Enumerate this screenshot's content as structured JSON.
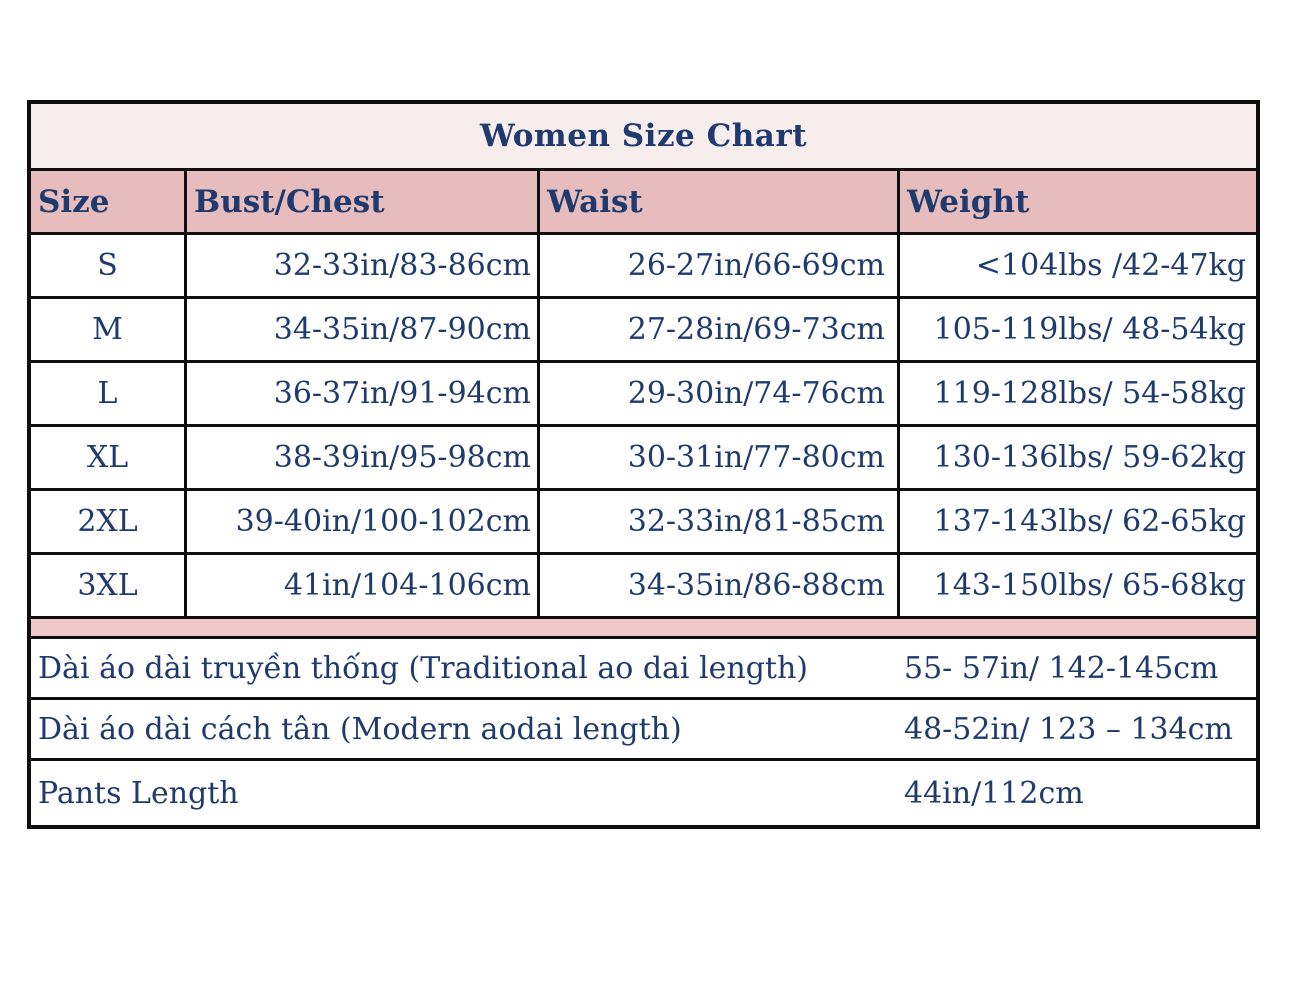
{
  "theme": {
    "title_bg": "#f8eded",
    "header_bg": "#e7bcbc",
    "separator_bg": "#efc9c9",
    "text": "#1e3a6e",
    "border": "#0e0e0e",
    "page_bg": "#ffffff"
  },
  "table": {
    "title": "Women Size Chart",
    "columns": [
      "Size",
      "Bust/Chest",
      "Waist",
      "Weight"
    ],
    "rows": [
      {
        "size": "S",
        "bust": "32-33in/83-86cm",
        "waist": "26-27in/66-69cm",
        "weight": "<104lbs /42-47kg"
      },
      {
        "size": "M",
        "bust": "34-35in/87-90cm",
        "waist": "27-28in/69-73cm",
        "weight": "105-119lbs/ 48-54kg"
      },
      {
        "size": "L",
        "bust": "36-37in/91-94cm",
        "waist": "29-30in/74-76cm",
        "weight": "119-128lbs/ 54-58kg"
      },
      {
        "size": "XL",
        "bust": "38-39in/95-98cm",
        "waist": "30-31in/77-80cm",
        "weight": "130-136lbs/ 59-62kg"
      },
      {
        "size": "2XL",
        "bust": "39-40in/100-102cm",
        "waist": "32-33in/81-85cm",
        "weight": "137-143lbs/ 62-65kg"
      },
      {
        "size": "3XL",
        "bust": "41in/104-106cm",
        "waist": "34-35in/86-88cm",
        "weight": "143-150lbs/ 65-68kg"
      }
    ],
    "extra_rows": [
      {
        "label": "Dài áo dài truyền thống (Traditional ao dai length)",
        "value": "55- 57in/ 142-145cm"
      },
      {
        "label": "Dài áo dài cách tân (Modern aodai length)",
        "value": "48-52in/ 123 – 134cm"
      },
      {
        "label": "Pants Length",
        "value": "44in/112cm"
      }
    ]
  }
}
